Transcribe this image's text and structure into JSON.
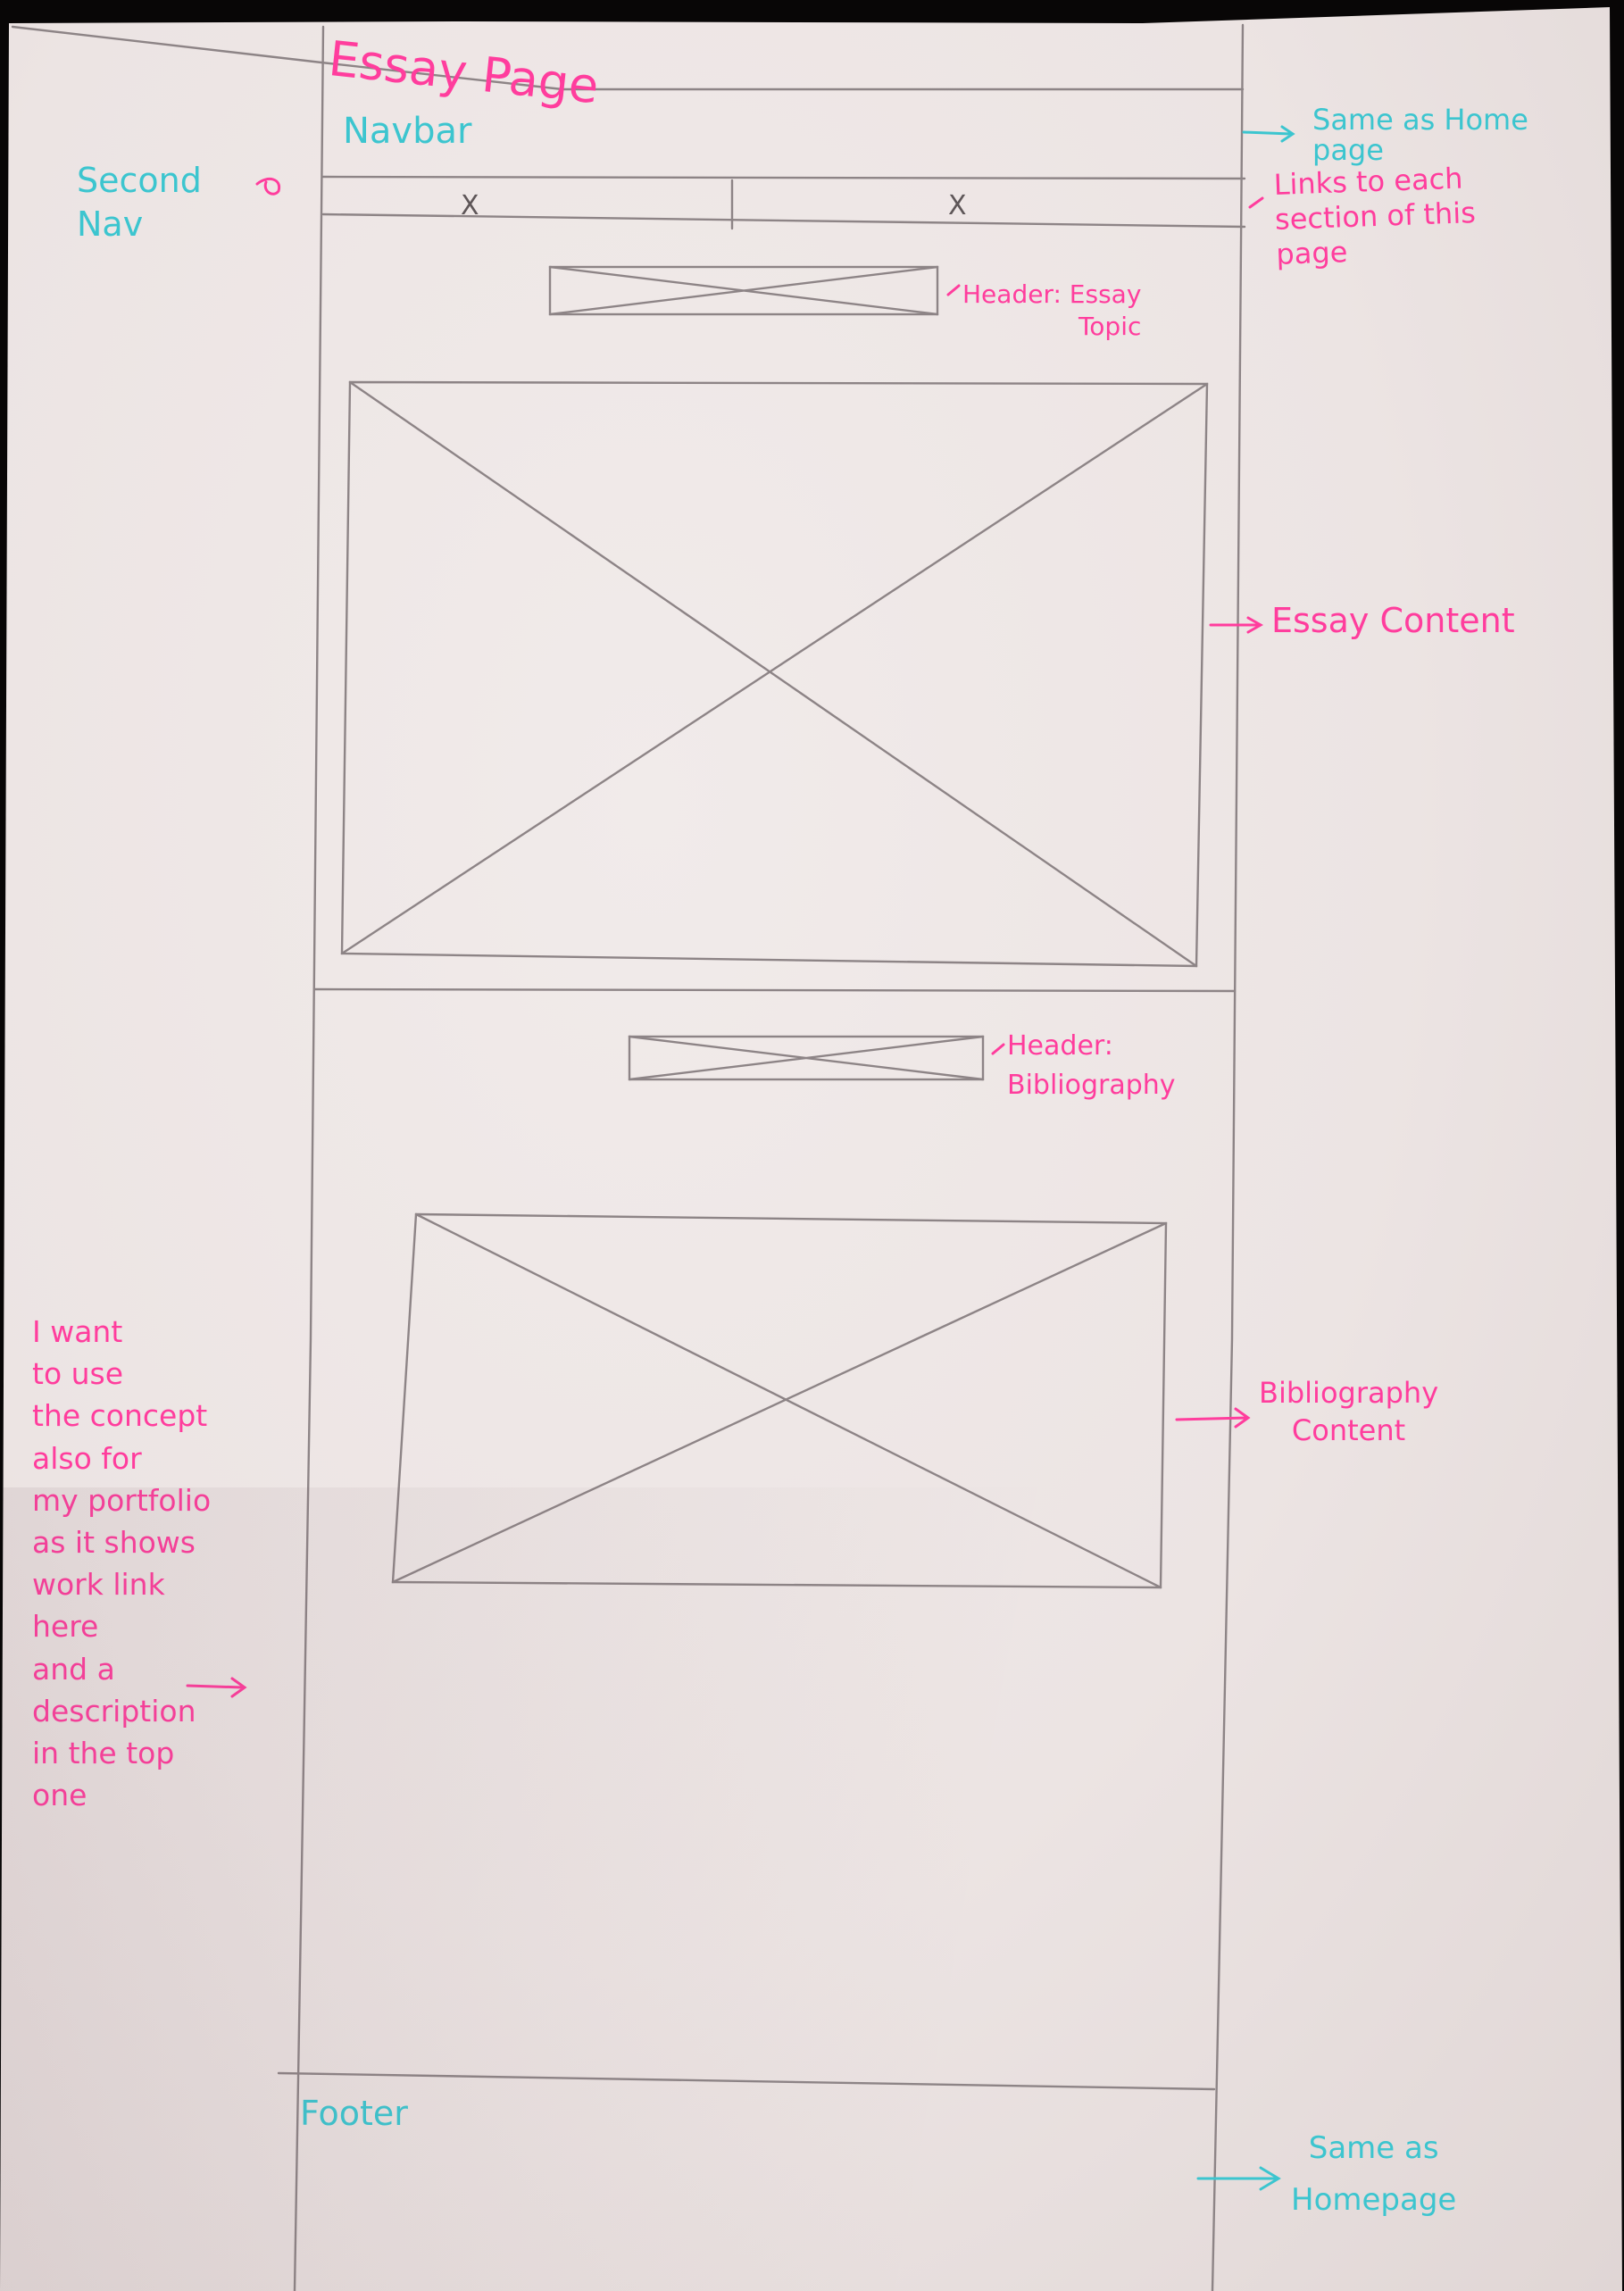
{
  "colors": {
    "pencil": "#8d8486",
    "pink_marker": "#ff3d9d",
    "cyan_marker": "#3cc5cf",
    "paper": "#ede5e4"
  },
  "title": "Essay Page",
  "navbar": {
    "label": "Navbar",
    "note": "Same as Home page"
  },
  "second_nav": {
    "label": "Second\nNav",
    "note": "Links to each\nsection of this\npage",
    "items": [
      "X",
      "X"
    ]
  },
  "essay": {
    "header_note": "Header: Essay\nTopic",
    "content_note": "Essay Content"
  },
  "bibliography": {
    "header_note": "Header:\nBibliography",
    "content_note": "Bibliography\nContent"
  },
  "left_note": "I want\nto use\nthe concept\nalso for\nmy portfolio\nas it shows\nwork link\n  here\nand a\ndescription\nin the top\none",
  "footer": {
    "label": "Footer",
    "note": "Same as\nHomepage"
  }
}
